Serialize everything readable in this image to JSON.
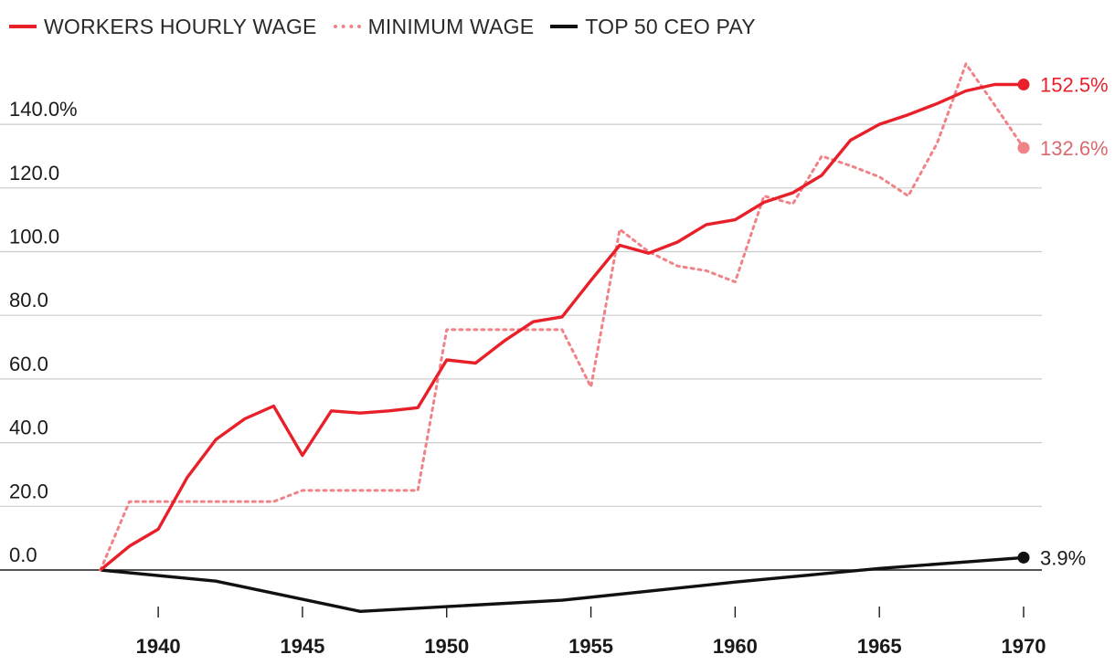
{
  "chart_data": {
    "type": "line",
    "title": "",
    "xlabel": "",
    "ylabel": "",
    "xlim": [
      1938,
      1970
    ],
    "ylim": [
      -15,
      160
    ],
    "x_ticks": [
      1940,
      1945,
      1950,
      1955,
      1960,
      1965,
      1970
    ],
    "x_tick_labels": [
      "1940",
      "1945",
      "1950",
      "1955",
      "1960",
      "1965",
      "1970"
    ],
    "y_ticks": [
      0,
      20,
      40,
      60,
      80,
      100,
      120,
      140
    ],
    "y_tick_labels": [
      "0.0",
      "20.0",
      "40.0",
      "60.0",
      "80.0",
      "100.0",
      "120.0",
      "140.0%"
    ],
    "grid": true,
    "legend_position": "top-left",
    "series": [
      {
        "name": "WORKERS HOURLY WAGE",
        "color": "#e8202a",
        "style": "solid",
        "end_label": "152.5%",
        "points": [
          [
            1938,
            0
          ],
          [
            1939,
            7.5
          ],
          [
            1940,
            12.8
          ],
          [
            1941,
            29
          ],
          [
            1942,
            41
          ],
          [
            1943,
            47.5
          ],
          [
            1944,
            51.5
          ],
          [
            1945,
            36
          ],
          [
            1946,
            50
          ],
          [
            1947,
            49.3
          ],
          [
            1948,
            50
          ],
          [
            1949,
            51
          ],
          [
            1950,
            66
          ],
          [
            1951,
            65
          ],
          [
            1952,
            72
          ],
          [
            1953,
            78
          ],
          [
            1954,
            79.5
          ],
          [
            1955,
            91
          ],
          [
            1956,
            102
          ],
          [
            1957,
            99.5
          ],
          [
            1958,
            103
          ],
          [
            1959,
            108.5
          ],
          [
            1960,
            110
          ],
          [
            1961,
            115.5
          ],
          [
            1962,
            118.5
          ],
          [
            1963,
            124
          ],
          [
            1964,
            135
          ],
          [
            1965,
            140
          ],
          [
            1966,
            143
          ],
          [
            1967,
            146.5
          ],
          [
            1968,
            150.5
          ],
          [
            1969,
            152.5
          ],
          [
            1970,
            152.5
          ]
        ]
      },
      {
        "name": "MINIMUM WAGE",
        "color": "#f08288",
        "style": "dotted",
        "end_label": "132.6%",
        "points": [
          [
            1938,
            0
          ],
          [
            1939,
            21.5
          ],
          [
            1944,
            21.5
          ],
          [
            1945,
            25
          ],
          [
            1949,
            25
          ],
          [
            1950,
            75.5
          ],
          [
            1954,
            75.5
          ],
          [
            1955,
            57.5
          ],
          [
            1956,
            107
          ],
          [
            1957,
            100
          ],
          [
            1958,
            95.5
          ],
          [
            1959,
            94
          ],
          [
            1960,
            90.5
          ],
          [
            1961,
            117.5
          ],
          [
            1962,
            115
          ],
          [
            1963,
            130
          ],
          [
            1964,
            127
          ],
          [
            1965,
            123.5
          ],
          [
            1966,
            117.5
          ],
          [
            1967,
            134
          ],
          [
            1968,
            159
          ],
          [
            1969,
            146
          ],
          [
            1970,
            132.6
          ]
        ]
      },
      {
        "name": "TOP 50 CEO PAY",
        "color": "#111111",
        "style": "solid",
        "end_label": "3.9%",
        "points": [
          [
            1938,
            0
          ],
          [
            1942,
            -3.5
          ],
          [
            1947,
            -13
          ],
          [
            1954,
            -9.5
          ],
          [
            1960,
            -3.8
          ],
          [
            1965,
            0.5
          ],
          [
            1970,
            3.9
          ]
        ]
      }
    ]
  }
}
